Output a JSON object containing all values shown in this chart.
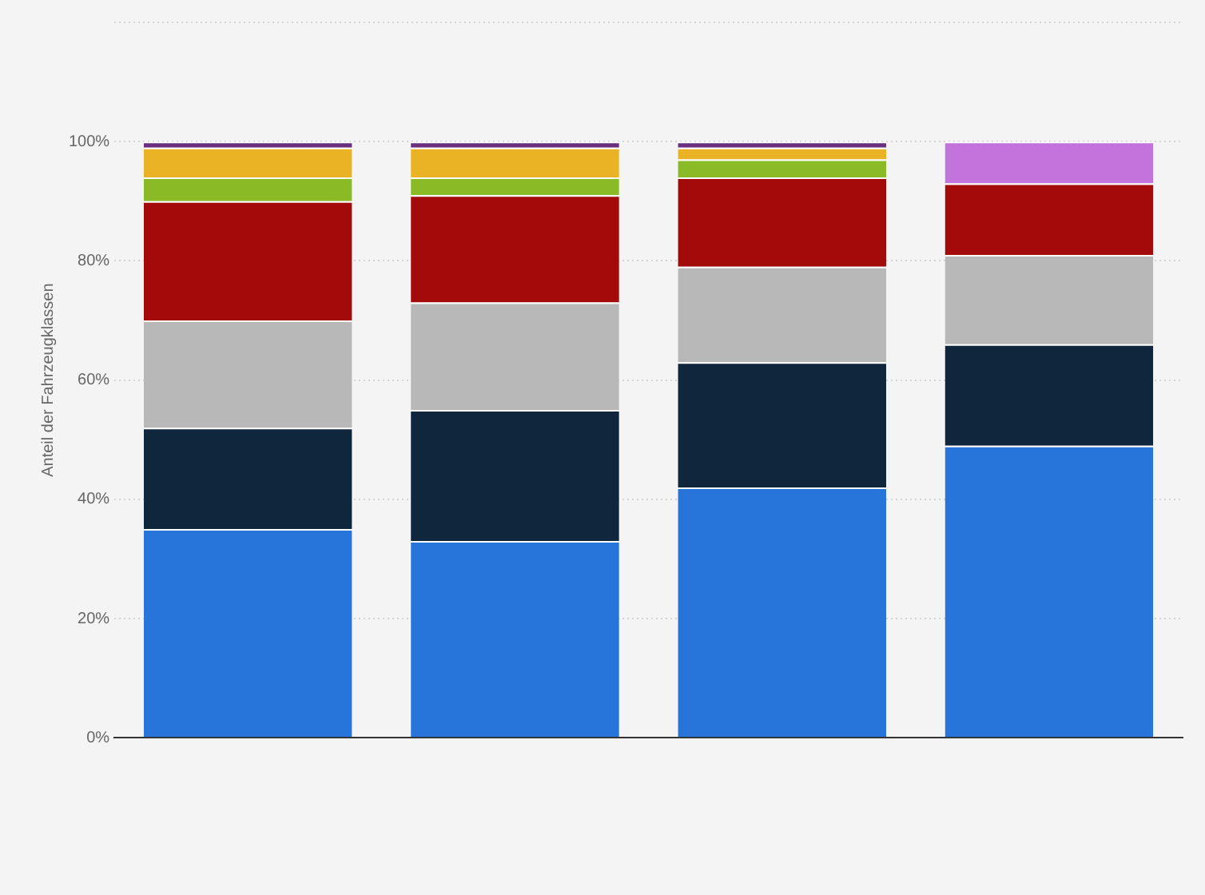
{
  "chart_data": {
    "type": "bar",
    "stacked": true,
    "ylabel": "Anteil der Fahrzeugklassen",
    "categories": [
      null,
      null,
      null,
      null
    ],
    "series": [
      {
        "color": "#2775da",
        "values": [
          35,
          33,
          42,
          49
        ]
      },
      {
        "color": "#10263c",
        "values": [
          17,
          22,
          21,
          17
        ]
      },
      {
        "color": "#b8b8b8",
        "values": [
          18,
          18,
          16,
          15
        ]
      },
      {
        "color": "#a30a0a",
        "values": [
          20,
          18,
          15,
          12
        ]
      },
      {
        "color": "#8aba26",
        "values": [
          4,
          3,
          3,
          null
        ]
      },
      {
        "color": "#eab326",
        "values": [
          5,
          5,
          2,
          null
        ]
      },
      {
        "color": "#6a3080",
        "values": [
          1,
          1,
          1,
          null
        ]
      },
      {
        "color": "#c274dc",
        "values": [
          null,
          null,
          null,
          7
        ]
      }
    ],
    "ylim": [
      0,
      120
    ],
    "yticks": [
      {
        "value": 0,
        "label": "0%"
      },
      {
        "value": 20,
        "label": "20%"
      },
      {
        "value": 40,
        "label": "40%"
      },
      {
        "value": 60,
        "label": "60%"
      },
      {
        "value": 80,
        "label": "80%"
      },
      {
        "value": 100,
        "label": "100%"
      },
      {
        "value": 120,
        "label": null
      }
    ],
    "grid": "y",
    "legend": false
  }
}
